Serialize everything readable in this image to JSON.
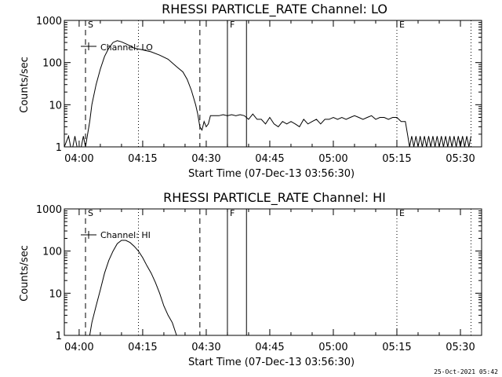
{
  "footer_timestamp": "25-Oct-2021 05:42",
  "x_axis": {
    "tick_labels": [
      "04:00",
      "04:15",
      "04:30",
      "04:45",
      "05:00",
      "05:15",
      "05:30"
    ],
    "xlabel": "Start Time (07-Dec-13 03:56:30)"
  },
  "chart_data": [
    {
      "type": "line",
      "title": "RHESSI PARTICLE_RATE Channel: LO",
      "ylabel": "Counts/sec",
      "xlabel": "Start Time (07-Dec-13 03:56:30)",
      "y_scale": "log",
      "ylim": [
        1,
        1000
      ],
      "y_tick_labels": [
        "1",
        "10",
        "100",
        "1000"
      ],
      "xlim": [
        "03:56:30",
        "05:35:00"
      ],
      "x_tick_labels": [
        "04:00",
        "04:15",
        "04:30",
        "04:45",
        "05:00",
        "05:15",
        "05:30"
      ],
      "legend": {
        "label": "Channel: LO",
        "placement": "top-left"
      },
      "markers": [
        {
          "label": "S",
          "time": "04:01:30",
          "style": "dashed"
        },
        {
          "label": "",
          "time": "04:28:30",
          "style": "dashed"
        },
        {
          "label": "F",
          "time": "04:35:00",
          "style": "solid"
        },
        {
          "label": "",
          "time": "04:39:30",
          "style": "solid"
        },
        {
          "label": "",
          "time": "04:14:00",
          "style": "dotted"
        },
        {
          "label": "E",
          "time": "05:15:00",
          "style": "dotted"
        },
        {
          "label": "",
          "time": "05:32:30",
          "style": "dotted"
        }
      ],
      "series": [
        {
          "name": "Channel: LO",
          "x": [
            "03:56:30",
            "03:57:30",
            "03:58:00",
            "03:58:30",
            "03:59:00",
            "03:59:30",
            "04:00:00",
            "04:00:30",
            "04:01:00",
            "04:01:30",
            "04:02:00",
            "04:02:30",
            "04:03:00",
            "04:04:00",
            "04:05:00",
            "04:06:00",
            "04:07:00",
            "04:08:00",
            "04:09:00",
            "04:10:00",
            "04:11:00",
            "04:12:00",
            "04:13:00",
            "04:15:00",
            "04:17:00",
            "04:19:00",
            "04:21:00",
            "04:23:00",
            "04:24:30",
            "04:25:30",
            "04:26:30",
            "04:27:30",
            "04:28:00",
            "04:28:30",
            "04:29:00",
            "04:29:30",
            "04:30:00",
            "04:30:30",
            "04:31:00",
            "04:31:30",
            "04:32:00",
            "04:33:00",
            "04:34:00",
            "04:35:00",
            "04:36:00",
            "04:37:00",
            "04:38:00",
            "04:39:00",
            "04:40:00",
            "04:41:00",
            "04:42:00",
            "04:43:00",
            "04:44:00",
            "04:45:00",
            "04:46:00",
            "04:47:00",
            "04:48:00",
            "04:49:00",
            "04:50:00",
            "04:51:00",
            "04:52:00",
            "04:53:00",
            "04:54:00",
            "04:55:00",
            "04:56:00",
            "04:57:00",
            "04:58:00",
            "04:59:00",
            "05:00:00",
            "05:01:00",
            "05:02:00",
            "05:03:00",
            "05:04:00",
            "05:05:00",
            "05:06:00",
            "05:07:00",
            "05:08:00",
            "05:09:00",
            "05:10:00",
            "05:11:00",
            "05:12:00",
            "05:13:00",
            "05:14:00",
            "05:15:00",
            "05:16:00",
            "05:17:00",
            "05:17:30",
            "05:18:00",
            "05:18:30",
            "05:19:00",
            "05:19:30",
            "05:20:00",
            "05:20:30",
            "05:21:00",
            "05:21:30",
            "05:22:00",
            "05:22:30",
            "05:23:00",
            "05:23:30",
            "05:24:00",
            "05:24:30",
            "05:25:00",
            "05:25:30",
            "05:26:00",
            "05:26:30",
            "05:27:00",
            "05:27:30",
            "05:28:00",
            "05:28:30",
            "05:29:00",
            "05:29:30",
            "05:30:00",
            "05:30:30",
            "05:31:00",
            "05:31:30",
            "05:32:00",
            "05:32:30"
          ],
          "y": [
            1,
            1.8,
            1,
            1,
            1.8,
            1,
            1,
            1,
            1.8,
            1,
            2,
            4,
            10,
            30,
            70,
            140,
            220,
            300,
            330,
            310,
            280,
            250,
            220,
            200,
            180,
            150,
            120,
            80,
            60,
            40,
            22,
            10,
            6,
            3,
            2.5,
            4,
            3,
            3.5,
            5.5,
            5.5,
            5.5,
            5.5,
            5.8,
            5.5,
            5.8,
            5.5,
            5.8,
            5.5,
            4.5,
            6,
            4.5,
            4.5,
            3.5,
            5,
            3.5,
            3,
            4,
            3.5,
            4,
            3.5,
            3,
            4.5,
            3.5,
            4,
            4.5,
            3.5,
            4.5,
            4.5,
            5,
            4.5,
            5,
            4.5,
            5,
            5.5,
            5,
            4.5,
            5,
            5.5,
            4.5,
            5,
            5,
            4.5,
            5,
            5,
            4,
            4,
            2,
            1,
            1.8,
            1,
            1.8,
            1,
            1.8,
            1,
            1.8,
            1,
            1.8,
            1,
            1.8,
            1,
            1.8,
            1,
            1.8,
            1,
            1.8,
            1,
            1.8,
            1,
            1.8,
            1,
            1.8,
            1,
            1.8,
            1,
            1.8,
            1,
            1.8
          ]
        }
      ]
    },
    {
      "type": "line",
      "title": "RHESSI PARTICLE_RATE Channel: HI",
      "ylabel": "Counts/sec",
      "xlabel": "Start Time (07-Dec-13 03:56:30)",
      "y_scale": "log",
      "ylim": [
        1,
        1000
      ],
      "y_tick_labels": [
        "1",
        "10",
        "100",
        "1000"
      ],
      "xlim": [
        "03:56:30",
        "05:35:00"
      ],
      "x_tick_labels": [
        "04:00",
        "04:15",
        "04:30",
        "04:45",
        "05:00",
        "05:15",
        "05:30"
      ],
      "legend": {
        "label": "Channel: HI",
        "placement": "top-left"
      },
      "markers": [
        {
          "label": "S",
          "time": "04:01:30",
          "style": "dashed"
        },
        {
          "label": "",
          "time": "04:28:30",
          "style": "dashed"
        },
        {
          "label": "F",
          "time": "04:35:00",
          "style": "solid"
        },
        {
          "label": "",
          "time": "04:39:30",
          "style": "solid"
        },
        {
          "label": "",
          "time": "04:14:00",
          "style": "dotted"
        },
        {
          "label": "E",
          "time": "05:15:00",
          "style": "dotted"
        },
        {
          "label": "",
          "time": "05:32:30",
          "style": "dotted"
        }
      ],
      "series": [
        {
          "name": "Channel: HI",
          "x": [
            "04:02:30",
            "04:03:00",
            "04:04:00",
            "04:05:00",
            "04:06:00",
            "04:07:00",
            "04:08:00",
            "04:09:00",
            "04:10:00",
            "04:11:00",
            "04:12:00",
            "04:13:00",
            "04:14:00",
            "04:15:00",
            "04:16:00",
            "04:17:00",
            "04:18:00",
            "04:19:00",
            "04:20:00",
            "04:21:00",
            "04:22:00",
            "04:23:00"
          ],
          "y": [
            1,
            2,
            5,
            12,
            30,
            60,
            100,
            150,
            180,
            180,
            160,
            130,
            100,
            70,
            45,
            30,
            18,
            10,
            5,
            3,
            2,
            1
          ]
        }
      ]
    }
  ]
}
